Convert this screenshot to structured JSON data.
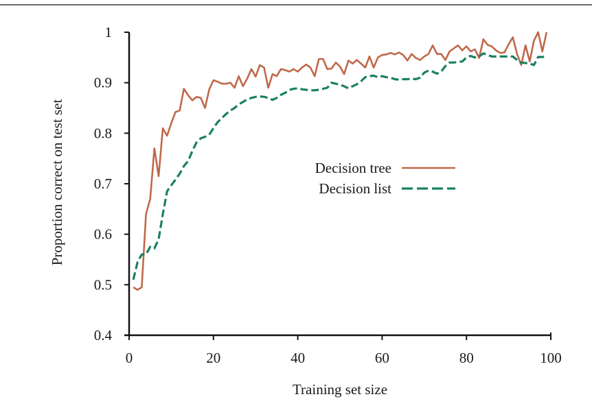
{
  "chart_data": {
    "type": "line",
    "title": "",
    "xlabel": "Training set size",
    "ylabel": "Proportion correct on test set",
    "xlim": [
      0,
      100
    ],
    "ylim": [
      0.4,
      1.0
    ],
    "x_ticks": [
      0,
      20,
      40,
      60,
      80,
      100
    ],
    "x_tick_labels": [
      "0",
      "20",
      "40",
      "60",
      "80",
      "100"
    ],
    "y_ticks": [
      0.4,
      0.5,
      0.6,
      0.7,
      0.8,
      0.9,
      1.0
    ],
    "y_tick_labels": [
      "0.4",
      "0.5",
      "0.6",
      "0.7",
      "0.8",
      "0.9",
      "1"
    ],
    "grid": false,
    "legend_position": "center-right",
    "x": [
      1,
      2,
      3,
      4,
      5,
      6,
      7,
      8,
      9,
      10,
      11,
      12,
      13,
      14,
      15,
      16,
      17,
      18,
      19,
      20,
      21,
      22,
      23,
      24,
      25,
      26,
      27,
      28,
      29,
      30,
      31,
      32,
      33,
      34,
      35,
      36,
      37,
      38,
      39,
      40,
      41,
      42,
      43,
      44,
      45,
      46,
      47,
      48,
      49,
      50,
      51,
      52,
      53,
      54,
      55,
      56,
      57,
      58,
      59,
      60,
      61,
      62,
      63,
      64,
      65,
      66,
      67,
      68,
      69,
      70,
      71,
      72,
      73,
      74,
      75,
      76,
      77,
      78,
      79,
      80,
      81,
      82,
      83,
      84,
      85,
      86,
      87,
      88,
      89,
      90,
      91,
      92,
      93,
      94,
      95,
      96,
      97,
      98,
      99
    ],
    "series": [
      {
        "name": "Decision tree",
        "color": "#c0684a",
        "style": "solid",
        "values": [
          0.495,
          0.49,
          0.495,
          0.64,
          0.67,
          0.77,
          0.715,
          0.81,
          0.795,
          0.82,
          0.842,
          0.845,
          0.888,
          0.875,
          0.865,
          0.872,
          0.87,
          0.85,
          0.887,
          0.905,
          0.902,
          0.898,
          0.898,
          0.9,
          0.89,
          0.913,
          0.893,
          0.908,
          0.927,
          0.912,
          0.935,
          0.93,
          0.89,
          0.917,
          0.913,
          0.927,
          0.925,
          0.922,
          0.927,
          0.922,
          0.93,
          0.936,
          0.93,
          0.913,
          0.947,
          0.947,
          0.927,
          0.928,
          0.94,
          0.932,
          0.917,
          0.944,
          0.938,
          0.945,
          0.938,
          0.93,
          0.952,
          0.93,
          0.95,
          0.955,
          0.956,
          0.959,
          0.956,
          0.96,
          0.955,
          0.944,
          0.957,
          0.949,
          0.945,
          0.952,
          0.957,
          0.974,
          0.957,
          0.957,
          0.945,
          0.962,
          0.968,
          0.974,
          0.964,
          0.972,
          0.962,
          0.966,
          0.949,
          0.986,
          0.975,
          0.972,
          0.964,
          0.959,
          0.96,
          0.976,
          0.99,
          0.957,
          0.935,
          0.974,
          0.942,
          0.983,
          1.0,
          0.962,
          1.0
        ]
      },
      {
        "name": "Decision list",
        "color": "#1a8060",
        "style": "dashed",
        "values": [
          0.51,
          0.545,
          0.56,
          0.56,
          0.575,
          0.572,
          0.59,
          0.64,
          0.685,
          0.697,
          0.708,
          0.72,
          0.735,
          0.745,
          0.765,
          0.782,
          0.79,
          0.793,
          0.797,
          0.81,
          0.822,
          0.83,
          0.838,
          0.845,
          0.85,
          0.857,
          0.862,
          0.867,
          0.87,
          0.872,
          0.873,
          0.872,
          0.87,
          0.866,
          0.87,
          0.876,
          0.88,
          0.886,
          0.888,
          0.889,
          0.887,
          0.886,
          0.885,
          0.885,
          0.886,
          0.888,
          0.89,
          0.9,
          0.898,
          0.896,
          0.893,
          0.889,
          0.893,
          0.897,
          0.903,
          0.911,
          0.913,
          0.914,
          0.911,
          0.913,
          0.911,
          0.91,
          0.907,
          0.906,
          0.907,
          0.907,
          0.908,
          0.907,
          0.91,
          0.92,
          0.924,
          0.922,
          0.918,
          0.922,
          0.933,
          0.94,
          0.94,
          0.941,
          0.942,
          0.95,
          0.953,
          0.95,
          0.952,
          0.958,
          0.955,
          0.952,
          0.952,
          0.952,
          0.952,
          0.952,
          0.952,
          0.945,
          0.94,
          0.939,
          0.938,
          0.935,
          0.951,
          0.951,
          0.952
        ]
      }
    ],
    "legend": [
      {
        "label": "Decision tree",
        "style": "solid"
      },
      {
        "label": "Decision list",
        "style": "dashed"
      }
    ]
  }
}
